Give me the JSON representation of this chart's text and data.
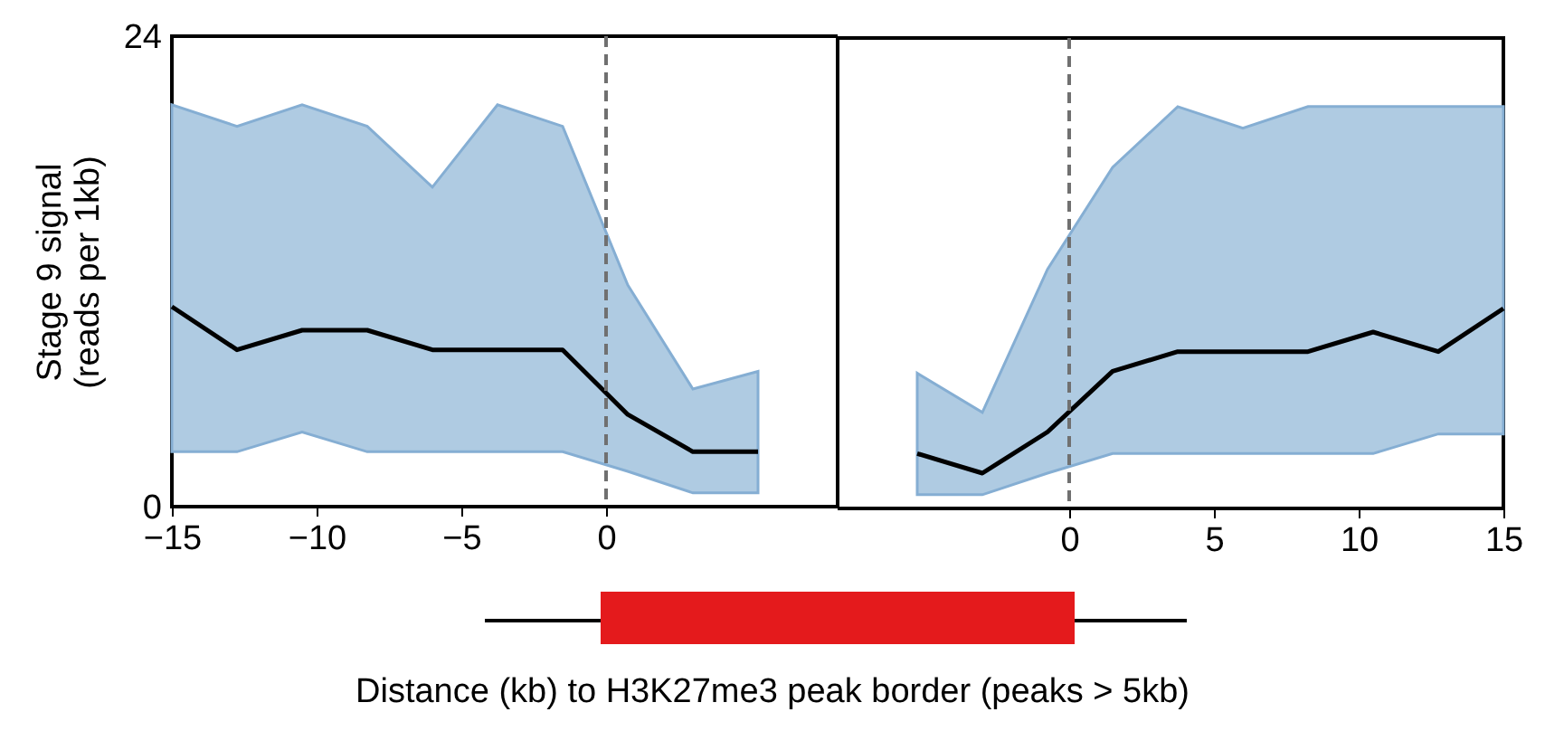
{
  "chart_data": [
    {
      "type": "line",
      "ylabel": "Stage 9 signal\n(reads per 1kb)",
      "xlabel": "Distance (kb) to H3K27me3 peak border (peaks > 5kb)",
      "xlim": [
        -15,
        8
      ],
      "xticks": [
        -15,
        -10,
        -5,
        0
      ],
      "ylim": [
        0,
        24
      ],
      "yticks": [
        0,
        24
      ],
      "x": [
        -15,
        -12.75,
        -10.5,
        -8.25,
        -6,
        -3.75,
        -1.5,
        0.75,
        3,
        5.25
      ],
      "series": [
        {
          "color": "#000000",
          "values": [
            10.2,
            8.0,
            9.0,
            9.0,
            8.0,
            8.0,
            8.0,
            4.7,
            2.8,
            2.8
          ],
          "lower": [
            2.8,
            2.8,
            3.8,
            2.8,
            2.8,
            2.8,
            2.8,
            1.8,
            0.7,
            0.7
          ],
          "upper": [
            20.5,
            19.4,
            20.5,
            19.4,
            16.3,
            20.5,
            19.4,
            11.3,
            6.0,
            6.9
          ]
        }
      ],
      "ref_lines": [
        {
          "axis": "x",
          "value": 0,
          "color": "#707070",
          "line_style": "dashed"
        }
      ]
    },
    {
      "type": "line",
      "xlim": [
        -8,
        15
      ],
      "xticks": [
        0,
        5,
        10,
        15
      ],
      "ylim": [
        0,
        24
      ],
      "tick_labels": "x",
      "x": [
        -5.25,
        -3,
        -0.75,
        1.5,
        3.75,
        6,
        8.25,
        10.5,
        12.75,
        15
      ],
      "series": [
        {
          "color": "#000000",
          "values": [
            2.8,
            1.8,
            3.9,
            7.0,
            8.0,
            8.0,
            8.0,
            9.0,
            8.0,
            10.2
          ],
          "lower": [
            0.7,
            0.7,
            1.8,
            2.8,
            2.8,
            2.8,
            2.8,
            2.8,
            3.8,
            3.8
          ],
          "upper": [
            6.9,
            4.9,
            12.2,
            17.4,
            20.5,
            19.4,
            20.5,
            20.5,
            20.5,
            20.5
          ]
        }
      ],
      "ref_lines": [
        {
          "axis": "x",
          "value": 0,
          "color": "#707070",
          "line_style": "dashed"
        }
      ]
    }
  ]
}
